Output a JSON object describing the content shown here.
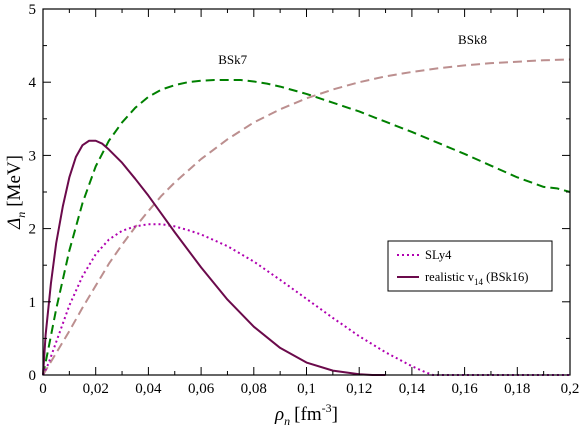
{
  "chart_data": {
    "type": "line",
    "xlabel": {
      "symbol": "ρ",
      "sub": "n",
      "unit": "[fm",
      "sup": "-3",
      "close": "]"
    },
    "ylabel": {
      "symbol": "Δ",
      "sub": "n",
      "unit": "[MeV]"
    },
    "xlim": [
      0,
      0.2
    ],
    "ylim": [
      0,
      5
    ],
    "x_ticks": [
      "0",
      "0,02",
      "0,04",
      "0,06",
      "0,08",
      "0,1",
      "0,12",
      "0,14",
      "0,16",
      "0,18",
      "0,2"
    ],
    "y_ticks": [
      "0",
      "1",
      "2",
      "3",
      "4",
      "5"
    ],
    "grid": false,
    "legend_position": "center-right",
    "legend": [
      {
        "series": "SLy4",
        "text": "SLy4"
      },
      {
        "series": "realistic",
        "text": "realistic v",
        "sub": "14",
        "after": " (BSk16)"
      }
    ],
    "annotations": [
      {
        "series": "BSk7",
        "text": "BSk7",
        "x": 0.072,
        "y": 4.25
      },
      {
        "series": "BSk8",
        "text": "BSk8",
        "x": 0.163,
        "y": 4.52
      }
    ],
    "series": [
      {
        "name": "BSk7",
        "color": "#008000",
        "dash": "dashed",
        "x": [
          0,
          0.002,
          0.005,
          0.01,
          0.015,
          0.02,
          0.025,
          0.03,
          0.035,
          0.04,
          0.045,
          0.05,
          0.055,
          0.06,
          0.065,
          0.07,
          0.075,
          0.08,
          0.085,
          0.09,
          0.1,
          0.11,
          0.12,
          0.13,
          0.14,
          0.15,
          0.16,
          0.17,
          0.18,
          0.19,
          0.195,
          0.2
        ],
        "y": [
          0,
          0.35,
          0.9,
          1.7,
          2.35,
          2.85,
          3.2,
          3.45,
          3.65,
          3.8,
          3.9,
          3.96,
          4.0,
          4.02,
          4.03,
          4.03,
          4.03,
          4.01,
          3.98,
          3.94,
          3.84,
          3.72,
          3.6,
          3.46,
          3.32,
          3.17,
          3.02,
          2.86,
          2.7,
          2.57,
          2.55,
          2.5
        ]
      },
      {
        "name": "BSk8",
        "color": "#bc8f8f",
        "dash": "dashed",
        "x": [
          0,
          0.005,
          0.01,
          0.015,
          0.02,
          0.025,
          0.03,
          0.035,
          0.04,
          0.045,
          0.05,
          0.06,
          0.07,
          0.08,
          0.09,
          0.1,
          0.11,
          0.12,
          0.13,
          0.14,
          0.15,
          0.16,
          0.17,
          0.18,
          0.19,
          0.2
        ],
        "y": [
          0,
          0.3,
          0.6,
          0.92,
          1.22,
          1.52,
          1.78,
          2.02,
          2.24,
          2.45,
          2.63,
          2.95,
          3.22,
          3.45,
          3.63,
          3.78,
          3.9,
          4.0,
          4.08,
          4.14,
          4.19,
          4.23,
          4.26,
          4.28,
          4.3,
          4.31
        ]
      },
      {
        "name": "SLy4",
        "color": "#b000b0",
        "dash": "dotted",
        "x": [
          0,
          0.002,
          0.005,
          0.01,
          0.015,
          0.02,
          0.025,
          0.03,
          0.035,
          0.04,
          0.045,
          0.05,
          0.055,
          0.06,
          0.07,
          0.08,
          0.09,
          0.1,
          0.11,
          0.12,
          0.13,
          0.14,
          0.145,
          0.148,
          0.15,
          0.2
        ],
        "y": [
          0,
          0.15,
          0.45,
          0.95,
          1.35,
          1.65,
          1.85,
          1.97,
          2.03,
          2.06,
          2.06,
          2.03,
          1.98,
          1.92,
          1.76,
          1.55,
          1.3,
          1.04,
          0.78,
          0.53,
          0.31,
          0.12,
          0.04,
          0.0,
          0,
          0
        ]
      },
      {
        "name": "realistic",
        "color": "#6b0a4b",
        "dash": "solid",
        "x": [
          0,
          0.001,
          0.003,
          0.005,
          0.0075,
          0.01,
          0.0125,
          0.015,
          0.0175,
          0.02,
          0.0225,
          0.025,
          0.03,
          0.035,
          0.04,
          0.045,
          0.05,
          0.06,
          0.07,
          0.08,
          0.09,
          0.1,
          0.11,
          0.12,
          0.125,
          0.13
        ],
        "y": [
          0,
          0.55,
          1.25,
          1.8,
          2.3,
          2.7,
          2.98,
          3.14,
          3.2,
          3.2,
          3.16,
          3.08,
          2.9,
          2.68,
          2.45,
          2.2,
          1.95,
          1.47,
          1.03,
          0.66,
          0.37,
          0.17,
          0.06,
          0.01,
          0.0,
          0
        ]
      }
    ]
  }
}
